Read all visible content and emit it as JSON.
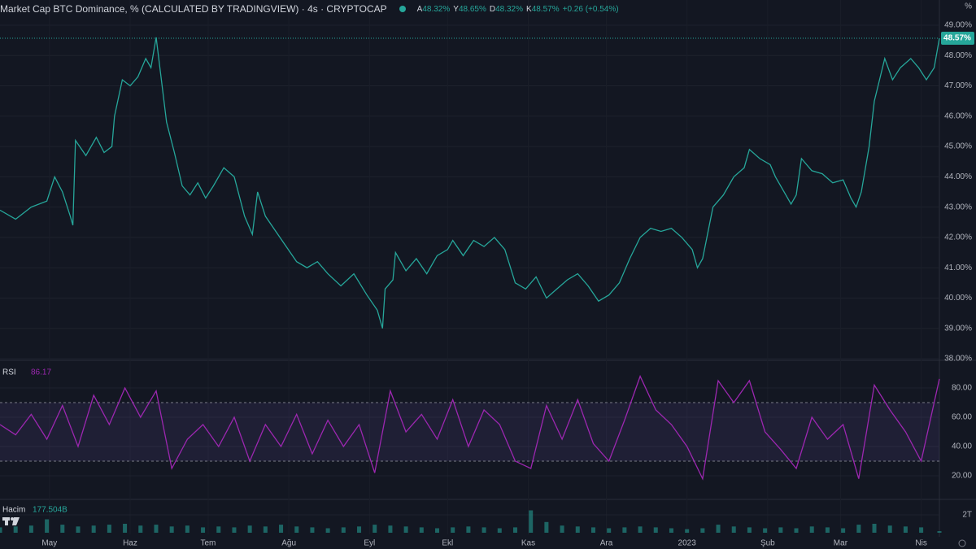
{
  "header": {
    "title": "Market Cap BTC Dominance, % (CALCULATED BY TRADINGVIEW) · 4s · CRYPTOCAP",
    "open_label": "A",
    "open": "48.32%",
    "high_label": "Y",
    "high": "48.65%",
    "low_label": "D",
    "low": "48.32%",
    "close_label": "K",
    "close": "48.57%",
    "change": "+0.26 (+0.54%)"
  },
  "chart_data": [
    {
      "type": "line",
      "unit": "%",
      "color": "#26a69a",
      "last_label": "48.57%",
      "xlim": [
        0,
        361
      ],
      "xticks": [
        {
          "value": 19,
          "label": "May"
        },
        {
          "value": 50,
          "label": "Haz"
        },
        {
          "value": 80,
          "label": "Tem"
        },
        {
          "value": 111,
          "label": "Ağu"
        },
        {
          "value": 142,
          "label": "Eyl"
        },
        {
          "value": 172,
          "label": "Ekl"
        },
        {
          "value": 203,
          "label": "Kas"
        },
        {
          "value": 233,
          "label": "Ara"
        },
        {
          "value": 264,
          "label": "2023"
        },
        {
          "value": 295,
          "label": "Şub"
        },
        {
          "value": 323,
          "label": "Mar"
        },
        {
          "value": 354,
          "label": "Nis"
        }
      ],
      "ylim": [
        38,
        49
      ],
      "yticks": [
        {
          "value": 38,
          "label": "38.00%"
        },
        {
          "value": 39,
          "label": "39.00%"
        },
        {
          "value": 40,
          "label": "40.00%"
        },
        {
          "value": 41,
          "label": "41.00%"
        },
        {
          "value": 42,
          "label": "42.00%"
        },
        {
          "value": 43,
          "label": "43.00%"
        },
        {
          "value": 44,
          "label": "44.00%"
        },
        {
          "value": 45,
          "label": "45.00%"
        },
        {
          "value": 46,
          "label": "46.00%"
        },
        {
          "value": 47,
          "label": "47.00%"
        },
        {
          "value": 48,
          "label": "48.00%"
        },
        {
          "value": 49,
          "label": "49.00%"
        }
      ],
      "x": [
        0,
        6,
        12,
        18,
        21,
        24,
        27,
        28,
        29,
        33,
        37,
        40,
        43,
        44,
        47,
        50,
        53,
        56,
        58,
        60,
        62,
        64,
        67,
        70,
        73,
        76,
        79,
        82,
        86,
        90,
        94,
        97,
        99,
        102,
        106,
        110,
        114,
        118,
        122,
        126,
        131,
        136,
        141,
        145,
        147,
        148,
        151,
        152,
        156,
        160,
        164,
        168,
        172,
        174,
        178,
        182,
        186,
        190,
        194,
        198,
        202,
        206,
        210,
        214,
        218,
        222,
        226,
        230,
        234,
        238,
        242,
        246,
        250,
        254,
        258,
        262,
        266,
        268,
        270,
        274,
        278,
        282,
        286,
        288,
        292,
        296,
        298,
        302,
        304,
        306,
        308,
        312,
        316,
        320,
        324,
        327,
        329,
        331,
        334,
        336,
        338,
        340,
        343,
        346,
        350,
        353,
        356,
        359,
        361
      ],
      "values": [
        42.9,
        42.6,
        43.0,
        43.2,
        44.0,
        43.5,
        42.7,
        42.4,
        45.2,
        44.7,
        45.3,
        44.8,
        45.0,
        46.0,
        47.2,
        47.0,
        47.3,
        47.9,
        47.6,
        48.6,
        47.2,
        45.8,
        44.8,
        43.7,
        43.4,
        43.8,
        43.3,
        43.7,
        44.3,
        44.0,
        42.7,
        42.1,
        43.5,
        42.7,
        42.2,
        41.7,
        41.2,
        41.0,
        41.2,
        40.8,
        40.4,
        40.8,
        40.1,
        39.6,
        39.0,
        40.3,
        40.6,
        41.5,
        40.9,
        41.3,
        40.8,
        41.4,
        41.6,
        41.9,
        41.4,
        41.9,
        41.7,
        42.0,
        41.6,
        40.5,
        40.3,
        40.7,
        40.0,
        40.3,
        40.6,
        40.8,
        40.4,
        39.9,
        40.1,
        40.5,
        41.3,
        42.0,
        42.3,
        42.2,
        42.3,
        42.0,
        41.6,
        41.0,
        41.3,
        43.0,
        43.4,
        44.0,
        44.3,
        44.9,
        44.6,
        44.4,
        44.0,
        43.4,
        43.1,
        43.4,
        44.6,
        44.2,
        44.1,
        43.8,
        43.9,
        43.3,
        43.0,
        43.5,
        45.0,
        46.5,
        47.2,
        47.9,
        47.2,
        47.6,
        47.9,
        47.6,
        47.2,
        47.6,
        48.57
      ]
    },
    {
      "type": "line",
      "title": "RSI",
      "color": "#9c27b0",
      "band_color": "#7e57c2",
      "bands": [
        30,
        70
      ],
      "xlim": [
        0,
        361
      ],
      "ylim": [
        5,
        97.8
      ],
      "yticks": [
        {
          "value": 20,
          "label": "20.00"
        },
        {
          "value": 40,
          "label": "40.00"
        },
        {
          "value": 60,
          "label": "60.00"
        },
        {
          "value": 80,
          "label": "80.00"
        }
      ],
      "x": [
        0,
        6,
        12,
        18,
        24,
        30,
        36,
        42,
        48,
        54,
        60,
        66,
        72,
        78,
        84,
        90,
        96,
        102,
        108,
        114,
        120,
        126,
        132,
        138,
        144,
        150,
        156,
        162,
        168,
        174,
        180,
        186,
        192,
        198,
        204,
        210,
        216,
        222,
        228,
        234,
        240,
        246,
        252,
        258,
        264,
        270,
        276,
        282,
        288,
        294,
        300,
        306,
        312,
        318,
        324,
        330,
        336,
        342,
        348,
        354,
        361
      ],
      "values": [
        55,
        48,
        62,
        45,
        68,
        40,
        75,
        55,
        80,
        60,
        78,
        25,
        45,
        55,
        40,
        60,
        30,
        55,
        40,
        62,
        35,
        58,
        40,
        55,
        22,
        78,
        50,
        62,
        45,
        72,
        40,
        65,
        55,
        30,
        25,
        68,
        45,
        72,
        42,
        30,
        58,
        88,
        65,
        55,
        40,
        18,
        85,
        70,
        85,
        50,
        38,
        25,
        60,
        45,
        55,
        18,
        82,
        65,
        50,
        30,
        86.17
      ]
    },
    {
      "type": "bar",
      "title": "Hacim",
      "color": "#26a69a",
      "last_label": "177.504B",
      "xlim": [
        0,
        361
      ],
      "ylim": [
        0,
        3455
      ],
      "yticks": [
        {
          "value": 2000,
          "label": "2T"
        }
      ],
      "x": [
        0,
        6,
        12,
        18,
        24,
        30,
        36,
        42,
        48,
        54,
        60,
        66,
        72,
        78,
        84,
        90,
        96,
        102,
        108,
        114,
        120,
        126,
        132,
        138,
        144,
        150,
        156,
        162,
        168,
        174,
        180,
        186,
        192,
        198,
        204,
        210,
        216,
        222,
        228,
        234,
        240,
        246,
        252,
        258,
        264,
        270,
        276,
        282,
        288,
        294,
        300,
        306,
        312,
        318,
        324,
        330,
        336,
        342,
        348,
        354,
        361
      ],
      "values": [
        600,
        700,
        800,
        1500,
        900,
        700,
        800,
        900,
        1000,
        800,
        900,
        700,
        800,
        600,
        700,
        600,
        800,
        700,
        900,
        700,
        600,
        500,
        600,
        700,
        900,
        800,
        700,
        600,
        500,
        600,
        700,
        600,
        500,
        600,
        2500,
        1200,
        800,
        700,
        600,
        500,
        600,
        700,
        600,
        500,
        400,
        500,
        900,
        700,
        600,
        500,
        600,
        500,
        700,
        600,
        500,
        900,
        1000,
        800,
        700,
        600,
        177.504
      ]
    }
  ]
}
